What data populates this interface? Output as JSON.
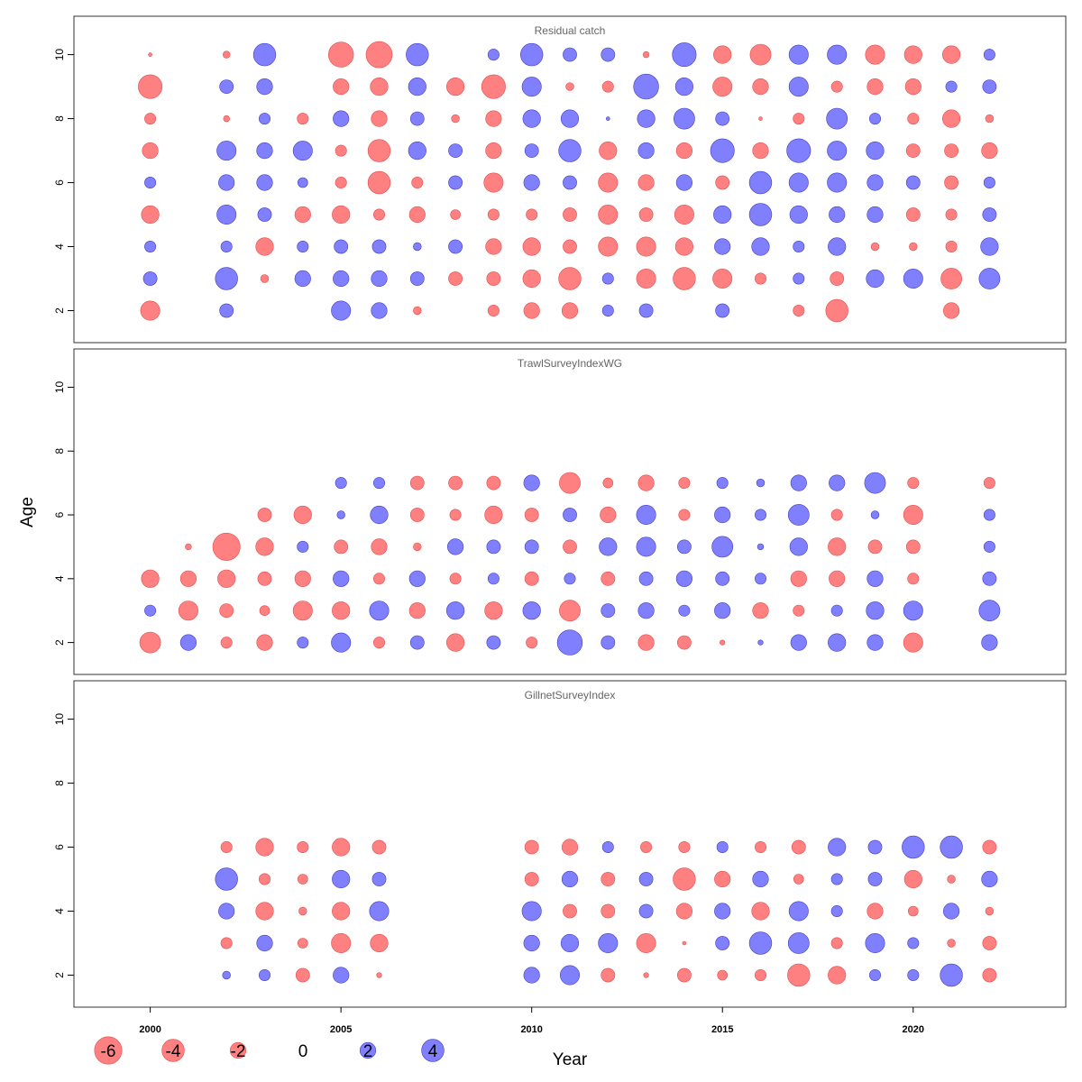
{
  "chart_data": {
    "type": "scatter",
    "subtype": "bubble",
    "xlabel": "Year",
    "ylabel": "Age",
    "xlim": [
      1998,
      2024
    ],
    "ylim": [
      1,
      11.2
    ],
    "x_ticks": [
      2000,
      2005,
      2010,
      2015,
      2020
    ],
    "y_ticks": [
      2,
      4,
      6,
      8,
      10
    ],
    "colors": {
      "negative": "#ff8080",
      "positive": "#8080ff",
      "negative_edge": "#e05050",
      "positive_edge": "#4040c0"
    },
    "legend": [
      {
        "label": "-6",
        "value": -6
      },
      {
        "label": "-4",
        "value": -4
      },
      {
        "label": "-2",
        "value": -2
      },
      {
        "label": "0",
        "value": 0
      },
      {
        "label": "2",
        "value": 2
      },
      {
        "label": "4",
        "value": 4
      }
    ],
    "panels": [
      {
        "title": "Residual catch",
        "years": [
          2000,
          2002,
          2003,
          2004,
          2005,
          2006,
          2007,
          2008,
          2009,
          2010,
          2011,
          2012,
          2013,
          2014,
          2015,
          2016,
          2017,
          2018,
          2019,
          2020,
          2021,
          2022
        ],
        "ages": [
          2,
          3,
          4,
          5,
          6,
          7,
          8,
          9,
          10
        ],
        "residuals": [
          [
            -3.0,
            1.5,
            1.0,
            -2.5,
            1.0,
            -2.0,
            -1.0,
            -4.5,
            -0.1
          ],
          [
            1.5,
            4.0,
            1.0,
            3.0,
            2.0,
            3.0,
            -0.3,
            1.5,
            -0.4
          ],
          [
            null,
            -0.5,
            -2.5,
            1.5,
            2.0,
            2.0,
            1.0,
            2.0,
            4.0
          ],
          [
            null,
            2.0,
            1.0,
            -2.0,
            0.8,
            3.0,
            -1.0,
            null,
            null
          ],
          [
            3.0,
            2.0,
            1.5,
            -2.5,
            -1.0,
            -1.0,
            2.0,
            -2.0,
            -5.0
          ],
          [
            2.0,
            2.0,
            1.5,
            -1.0,
            -4.0,
            -4.0,
            -2.0,
            -2.5,
            -5.5
          ],
          [
            -0.5,
            1.5,
            0.5,
            -2.0,
            -1.0,
            2.5,
            1.5,
            2.5,
            4.0
          ],
          [
            null,
            -1.5,
            1.5,
            -0.8,
            1.5,
            1.5,
            -0.5,
            -2.5,
            null
          ],
          [
            -1.0,
            -1.5,
            -2.0,
            -1.0,
            -3.0,
            -2.0,
            -2.0,
            -4.5,
            1.0
          ],
          [
            -2.0,
            -2.5,
            -2.5,
            -1.0,
            2.0,
            1.5,
            2.5,
            3.0,
            4.0
          ],
          [
            -2.0,
            -4.0,
            -1.5,
            -1.5,
            1.5,
            4.0,
            2.5,
            -0.5,
            1.5
          ],
          [
            1.0,
            1.0,
            -3.0,
            -3.0,
            -3.0,
            -2.5,
            0.1,
            -1.0,
            1.5
          ],
          [
            1.5,
            -3.0,
            -3.0,
            -1.5,
            -2.0,
            2.0,
            2.5,
            5.0,
            -0.3
          ],
          [
            null,
            -4.0,
            -2.5,
            -3.0,
            2.0,
            -2.0,
            3.5,
            2.5,
            4.5
          ],
          [
            1.5,
            -3.0,
            2.0,
            2.5,
            -1.5,
            4.5,
            1.5,
            -3.0,
            -2.5
          ],
          [
            null,
            -1.0,
            2.5,
            4.0,
            4.0,
            -2.0,
            -0.1,
            -2.0,
            -3.5
          ],
          [
            -1.0,
            1.0,
            1.0,
            2.5,
            3.0,
            4.5,
            -1.0,
            3.0,
            3.0
          ],
          [
            -4.0,
            -1.5,
            2.5,
            2.0,
            3.0,
            3.0,
            3.5,
            -1.0,
            3.0
          ],
          [
            null,
            2.5,
            -0.5,
            2.0,
            2.0,
            2.5,
            1.0,
            -2.0,
            -3.0
          ],
          [
            null,
            3.0,
            -0.5,
            -1.5,
            1.5,
            -1.5,
            -1.0,
            -2.0,
            -2.5
          ],
          [
            -2.0,
            -3.5,
            -1.0,
            -1.0,
            -1.5,
            -1.5,
            -2.5,
            1.0,
            -2.5
          ],
          [
            null,
            3.5,
            2.5,
            1.5,
            1.0,
            -2.0,
            -0.5,
            1.5,
            1.0
          ]
        ]
      },
      {
        "title": "TrawlSurveyIndexWG",
        "years": [
          2000,
          2001,
          2002,
          2003,
          2004,
          2005,
          2006,
          2007,
          2008,
          2009,
          2010,
          2011,
          2012,
          2013,
          2014,
          2015,
          2016,
          2017,
          2018,
          2019,
          2020,
          2022
        ],
        "ages": [
          2,
          3,
          4,
          5,
          6,
          7
        ],
        "residuals": [
          [
            -3.5,
            1.0,
            -2.5,
            null,
            null,
            null
          ],
          [
            2.0,
            -3.0,
            -2.0,
            -0.3,
            null,
            null
          ],
          [
            -1.0,
            -1.5,
            -2.5,
            -6.0,
            null,
            null
          ],
          [
            -2.0,
            -0.8,
            -1.5,
            -2.5,
            -1.5,
            null
          ],
          [
            1.0,
            -3.0,
            -2.0,
            1.0,
            -2.5,
            null
          ],
          [
            3.0,
            -2.5,
            2.0,
            -1.5,
            0.5,
            1.0
          ],
          [
            -1.0,
            3.0,
            -1.0,
            -2.0,
            2.5,
            1.0
          ],
          [
            1.5,
            -2.0,
            2.0,
            -0.5,
            -1.5,
            -1.5
          ],
          [
            -2.5,
            2.5,
            -1.0,
            2.0,
            -1.0,
            -1.5
          ],
          [
            1.5,
            -2.5,
            1.0,
            1.5,
            -2.5,
            -1.5
          ],
          [
            -1.0,
            2.5,
            -1.5,
            1.5,
            -1.5,
            2.0
          ],
          [
            5.0,
            -3.5,
            1.0,
            -1.5,
            1.5,
            -3.5
          ],
          [
            1.5,
            1.5,
            -1.5,
            2.5,
            -2.0,
            -0.8
          ],
          [
            -2.0,
            2.0,
            1.5,
            3.0,
            3.0,
            -2.0
          ],
          [
            -1.5,
            1.0,
            2.0,
            1.5,
            -1.0,
            -1.0
          ],
          [
            -0.2,
            2.0,
            1.5,
            3.5,
            2.0,
            1.0
          ],
          [
            0.2,
            -2.0,
            1.0,
            0.3,
            1.0,
            0.5
          ],
          [
            2.0,
            -1.0,
            -2.0,
            2.5,
            3.5,
            2.0
          ],
          [
            2.5,
            1.0,
            -2.0,
            -2.5,
            -1.0,
            2.0
          ],
          [
            2.0,
            2.5,
            2.0,
            -1.5,
            0.5,
            3.5
          ],
          [
            -3.0,
            3.0,
            -1.0,
            -1.5,
            -3.0,
            -1.0
          ],
          [
            2.0,
            3.5,
            1.5,
            1.0,
            1.0,
            -1.0
          ]
        ]
      },
      {
        "title": "GillnetSurveyIndex",
        "years": [
          2002,
          2003,
          2004,
          2005,
          2006,
          2010,
          2011,
          2012,
          2013,
          2014,
          2015,
          2016,
          2017,
          2018,
          2019,
          2020,
          2021,
          2022
        ],
        "ages": [
          2,
          3,
          4,
          5,
          6
        ],
        "residuals": [
          [
            0.5,
            -1.0,
            2.0,
            4.0,
            -1.0
          ],
          [
            1.0,
            2.0,
            -2.5,
            -1.0,
            -2.5
          ],
          [
            -1.5,
            -0.8,
            -0.5,
            -0.8,
            -1.0
          ],
          [
            2.0,
            -3.0,
            -2.5,
            2.5,
            -2.5
          ],
          [
            -0.2,
            -2.5,
            3.0,
            1.5,
            -1.5
          ],
          [
            2.0,
            2.0,
            3.0,
            -1.5,
            -1.5
          ],
          [
            3.0,
            2.5,
            -1.5,
            2.0,
            -2.0
          ],
          [
            -1.5,
            3.0,
            -1.5,
            -1.5,
            1.0
          ],
          [
            -0.2,
            -3.0,
            1.5,
            1.5,
            -1.0
          ],
          [
            -1.5,
            -0.1,
            -2.0,
            -4.0,
            -1.0
          ],
          [
            -0.8,
            1.5,
            2.0,
            -2.0,
            1.0
          ],
          [
            -1.0,
            4.0,
            -2.5,
            2.0,
            -1.0
          ],
          [
            -4.0,
            3.5,
            3.0,
            -0.8,
            -1.5
          ],
          [
            -2.5,
            -1.0,
            1.0,
            1.0,
            2.5
          ],
          [
            1.0,
            3.0,
            -2.0,
            1.5,
            1.5
          ],
          [
            1.0,
            1.0,
            -0.8,
            -2.5,
            4.0
          ],
          [
            4.0,
            -0.5,
            2.0,
            -0.5,
            4.0
          ],
          [
            -1.5,
            -1.5,
            -0.5,
            2.0,
            -1.5
          ]
        ]
      }
    ]
  }
}
